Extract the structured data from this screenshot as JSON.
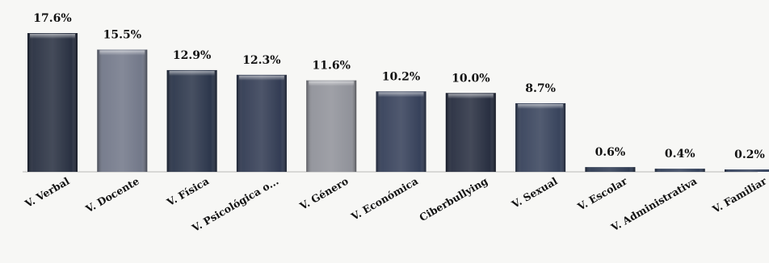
{
  "chart_data": {
    "type": "bar",
    "title": "",
    "xlabel": "",
    "ylabel": "",
    "ylim": [
      0,
      17.6
    ],
    "grid": false,
    "legend": "none",
    "categories": [
      "V. Verbal",
      "V. Docente",
      "V. Física",
      "V. Psicológica o...",
      "V. Género",
      "V. Económica",
      "Ciberbullying",
      "V. Sexual",
      "V. Escolar",
      "V. Administrativa",
      "V. Familiar"
    ],
    "values": [
      17.6,
      15.5,
      12.9,
      12.3,
      11.6,
      10.2,
      10.0,
      8.7,
      0.6,
      0.4,
      0.2
    ],
    "value_labels": [
      "17.6%",
      "15.5%",
      "12.9%",
      "12.3%",
      "11.6%",
      "10.2%",
      "10.0%",
      "8.7%",
      "0.6%",
      "0.4%",
      "0.2%"
    ],
    "bar_colors": [
      "#1c2436",
      "#6a7082",
      "#1f2a40",
      "#263049",
      "#8a8c94",
      "#2a3550",
      "#1b2235",
      "#2c3852",
      "#233049",
      "#283651",
      "#2a3854"
    ]
  }
}
